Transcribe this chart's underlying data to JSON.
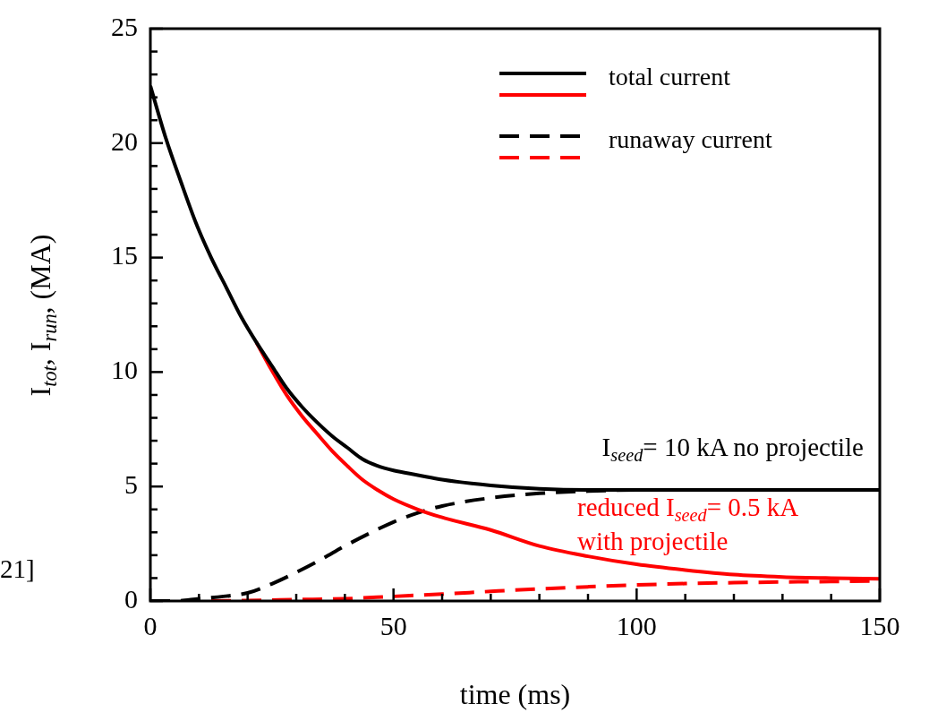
{
  "chart_data": {
    "type": "line",
    "xlabel": "time (ms)",
    "ylabel": "I$_{tot}$, I$_{run}$, (MA)",
    "xlim": [
      0,
      150
    ],
    "xticks": [
      0,
      {
        "value": 10,
        "label": null
      },
      {
        "value": 20,
        "label": null
      },
      {
        "value": 30,
        "label": null
      },
      {
        "value": 40,
        "label": null
      },
      50,
      {
        "value": 60,
        "label": null
      },
      {
        "value": 70,
        "label": null
      },
      {
        "value": 80,
        "label": null
      },
      {
        "value": 90,
        "label": null
      },
      100,
      {
        "value": 110,
        "label": null
      },
      {
        "value": 120,
        "label": null
      },
      {
        "value": 130,
        "label": null
      },
      {
        "value": 140,
        "label": null
      },
      150
    ],
    "ylim": [
      0,
      25
    ],
    "yticks": [
      0,
      {
        "value": 1,
        "label": null
      },
      {
        "value": 2,
        "label": null
      },
      {
        "value": 3,
        "label": null
      },
      {
        "value": 4,
        "label": null
      },
      5,
      {
        "value": 6,
        "label": null
      },
      {
        "value": 7,
        "label": null
      },
      {
        "value": 8,
        "label": null
      },
      {
        "value": 9,
        "label": null
      },
      10,
      {
        "value": 11,
        "label": null
      },
      {
        "value": 12,
        "label": null
      },
      {
        "value": 13,
        "label": null
      },
      {
        "value": 14,
        "label": null
      },
      15,
      {
        "value": 16,
        "label": null
      },
      {
        "value": 17,
        "label": null
      },
      {
        "value": 18,
        "label": null
      },
      {
        "value": 19,
        "label": null
      },
      20,
      {
        "value": 21,
        "label": null
      },
      {
        "value": 22,
        "label": null
      },
      {
        "value": 23,
        "label": null
      },
      {
        "value": 24,
        "label": null
      },
      25
    ],
    "grid": false,
    "legend": "top right",
    "marker": "none",
    "series": [
      {
        "name": "total current",
        "color": "#000000",
        "line_style": "solid",
        "x": [
          0,
          3.2,
          6.3,
          9.4,
          12.5,
          15.6,
          18.7,
          21.8,
          24.9,
          28,
          31.1,
          34.3,
          37.4,
          40.5,
          43.6,
          46.7,
          50,
          55,
          60,
          70,
          80,
          90,
          150
        ],
        "values": [
          22.5,
          20.2,
          18.3,
          16.5,
          15.0,
          13.7,
          12.4,
          11.3,
          10.3,
          9.3,
          8.5,
          7.8,
          7.2,
          6.7,
          6.2,
          5.9,
          5.7,
          5.5,
          5.3,
          5.05,
          4.9,
          4.85,
          4.85
        ]
      },
      {
        "color": "#ff0000",
        "line_style": "solid",
        "x": [
          21.8,
          24.9,
          28,
          31.1,
          34.3,
          37.4,
          40.5,
          43.6,
          46.7,
          50,
          55,
          60,
          70,
          80,
          90,
          100,
          110,
          120,
          130,
          140,
          150
        ],
        "values": [
          11.3,
          10.1,
          9.0,
          8.1,
          7.3,
          6.55,
          5.9,
          5.3,
          4.85,
          4.45,
          4.0,
          3.65,
          3.1,
          2.4,
          1.95,
          1.6,
          1.35,
          1.15,
          1.05,
          1.0,
          0.97
        ]
      },
      {
        "name": "runaway current",
        "color": "#000000",
        "line_style": "dashed",
        "x": [
          0,
          5,
          10,
          15,
          20,
          25,
          30,
          35,
          40,
          45,
          50,
          55,
          60,
          70,
          80,
          90,
          100,
          150
        ],
        "values": [
          0,
          0,
          0.1,
          0.2,
          0.35,
          0.75,
          1.25,
          1.8,
          2.4,
          2.95,
          3.45,
          3.85,
          4.15,
          4.5,
          4.7,
          4.8,
          4.85,
          4.85
        ]
      },
      {
        "color": "#ff0000",
        "line_style": "dashed",
        "x": [
          0,
          10,
          20,
          30,
          40,
          50,
          60,
          70,
          80,
          90,
          100,
          110,
          120,
          130,
          140,
          150
        ],
        "values": [
          0,
          0,
          0.02,
          0.06,
          0.1,
          0.2,
          0.3,
          0.42,
          0.53,
          0.62,
          0.7,
          0.76,
          0.8,
          0.83,
          0.85,
          0.87
        ]
      }
    ],
    "annotations": [
      "I$_{seed}$= 10 kA no projectile",
      "reduced I$_{seed}$= 0.5 kA\nwith projectile",
      "21]"
    ]
  }
}
